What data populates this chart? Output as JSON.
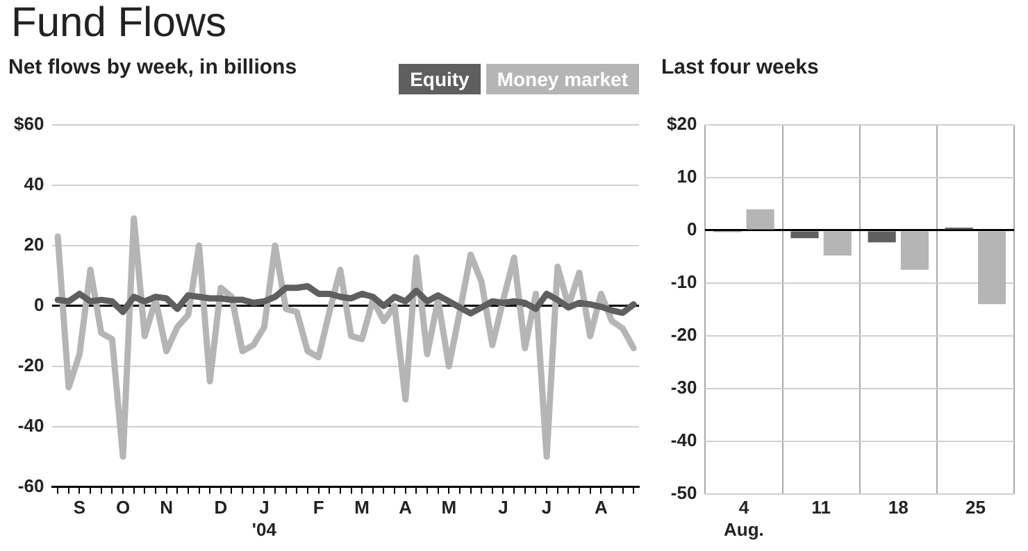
{
  "chart_data": [
    {
      "type": "line",
      "title": "Fund Flows",
      "subtitle": "Net flows by week, in billions",
      "categories": [
        null,
        null,
        "S",
        null,
        null,
        null,
        "O",
        null,
        null,
        null,
        "N",
        null,
        null,
        null,
        null,
        "D",
        null,
        null,
        null,
        "J\n'04",
        null,
        null,
        null,
        null,
        "F",
        null,
        null,
        null,
        "M",
        null,
        null,
        null,
        "A",
        null,
        null,
        null,
        "M",
        null,
        null,
        null,
        null,
        "J",
        null,
        null,
        null,
        "J",
        null,
        null,
        null,
        null,
        "A",
        null,
        null,
        null
      ],
      "series": [
        {
          "name": "Equity",
          "color": "#5f5f5f",
          "values": [
            2,
            1.5,
            4,
            1.5,
            2,
            1.5,
            -2,
            3,
            1.5,
            3,
            2.5,
            -1,
            3.5,
            3,
            2.5,
            2.5,
            2,
            2,
            1,
            1.5,
            3,
            6,
            6,
            6.5,
            4,
            4,
            3,
            2.5,
            4,
            3,
            0,
            3,
            1.5,
            5,
            1.5,
            3.5,
            1.5,
            -0.5,
            -2.5,
            -0.5,
            1.5,
            1,
            1.5,
            1,
            -1,
            4,
            2,
            -0.5,
            1,
            0.5,
            -0.3,
            -1.5,
            -2.3,
            0.5
          ]
        },
        {
          "name": "Money market",
          "color": "#b5b5b5",
          "values": [
            23,
            -27,
            -16,
            12,
            -9,
            -11,
            -50,
            29,
            -10,
            2,
            -15,
            -7,
            -3,
            20,
            -25,
            6,
            3,
            -15,
            -13,
            -7,
            20,
            -1,
            -2,
            -15,
            -17,
            -2,
            12,
            -10,
            -11,
            2,
            -5,
            0,
            -31,
            16,
            -16,
            2,
            -20,
            -2,
            17,
            8,
            -13,
            2,
            16,
            -14,
            4,
            -50,
            13,
            0,
            11,
            -10,
            4,
            -5,
            -7.5,
            -14
          ]
        }
      ],
      "ylim": [
        -60,
        60
      ],
      "yticks": [
        {
          "value": 60,
          "label": "$60"
        },
        40,
        20,
        0,
        -20,
        -40,
        -60
      ],
      "grid": "y",
      "legend": "top right"
    },
    {
      "type": "bar",
      "title": "Last four weeks",
      "categories": [
        "4\nAug.",
        "11",
        "18",
        "25"
      ],
      "series": [
        {
          "color": "#5f5f5f",
          "values": [
            -0.3,
            -1.5,
            -2.3,
            0.5
          ]
        },
        {
          "color": "#b5b5b5",
          "values": [
            4,
            -4.8,
            -7.5,
            -14
          ]
        }
      ],
      "ylim": [
        -50,
        20
      ],
      "yticks": [
        {
          "value": 20,
          "label": "$20"
        },
        10,
        0,
        -10,
        -20,
        -30,
        -40,
        -50
      ],
      "grid": true
    }
  ]
}
